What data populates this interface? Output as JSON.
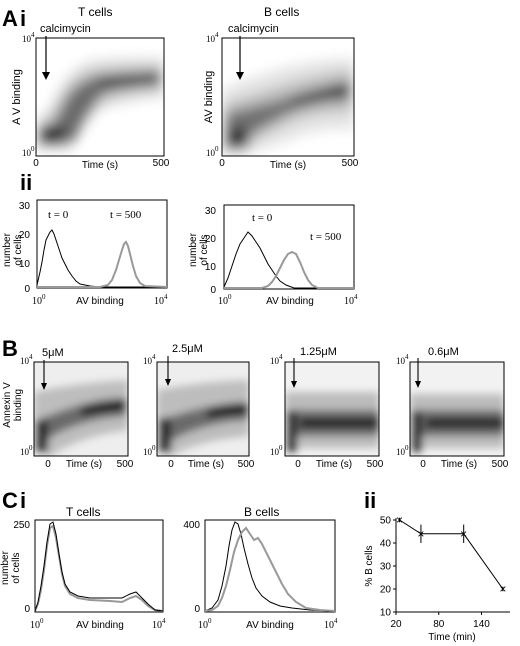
{
  "panel_A": {
    "label": "A",
    "sub_i": "i",
    "sub_ii": "ii",
    "density": [
      {
        "title": "T cells",
        "annot": "calcimycin",
        "ylabel": "A V binding",
        "xlabel": "Time (s)",
        "xtick0": "0",
        "xtick1": "500",
        "ytick_top": "10",
        "ytick_top_exp": "4",
        "ytick_bot": "10",
        "ytick_bot_exp": "0"
      },
      {
        "title": "B cells",
        "annot": "calcimycin",
        "ylabel": "AV binding",
        "xlabel": "Time (s)",
        "xtick0": "0",
        "xtick1": "500",
        "ytick_top": "10",
        "ytick_top_exp": "4",
        "ytick_bot": "10",
        "ytick_bot_exp": "0"
      }
    ],
    "hist": [
      {
        "ylabel1": "number",
        "ylabel2": "of cells",
        "xlabel": "AV binding",
        "t0": "t = 0",
        "t500": "t = 500",
        "y30": "30",
        "y20": "20",
        "y10": "10",
        "y0": "0",
        "x0": "10",
        "x0_exp": "0",
        "x1": "10",
        "x1_exp": "4"
      },
      {
        "ylabel1": "number",
        "ylabel2": "of cells",
        "xlabel": "AV binding",
        "t0": "t = 0",
        "t500": "t = 500",
        "y30": "30",
        "y20": "20",
        "y10": "10",
        "y0": "0",
        "x0": "10",
        "x0_exp": "0",
        "x1": "10",
        "x1_exp": "4"
      }
    ]
  },
  "panel_B": {
    "label": "B",
    "ylabel1": "Annexin V",
    "ylabel2": "binding",
    "xlabel": "Time (s)",
    "xtick0": "0",
    "xtick1": "500",
    "ytick_top": "10",
    "ytick_top_exp": "4",
    "ytick_bot": "10",
    "ytick_bot_exp": "0",
    "concentrations": [
      "5μM",
      "2.5μM",
      "1.25μM",
      "0.6μM"
    ]
  },
  "panel_C": {
    "label": "C",
    "sub_i": "i",
    "sub_ii": "ii",
    "hist": [
      {
        "title": "T cells",
        "ylabel1": "number",
        "ylabel2": "of cells",
        "xlabel": "AV binding",
        "ytop": "250",
        "ymid": "0",
        "x0": "10",
        "x0_exp": "0",
        "x1": "10",
        "x1_exp": "4"
      },
      {
        "title": "B cells",
        "ylabel1": "",
        "ylabel2": "",
        "xlabel": "AV binding",
        "ytop": "400",
        "ymid": "0",
        "x0": "10",
        "x0_exp": "0",
        "x1": "10",
        "x1_exp": "4"
      }
    ],
    "line": {
      "ylabel": "% B cells",
      "xlabel": "Time (min)",
      "yticks": [
        "50",
        "40",
        "30",
        "20",
        "10"
      ],
      "xticks": [
        "20",
        "80",
        "140"
      ]
    }
  },
  "chart_data": [
    {
      "type": "heatmap",
      "title": "T cells",
      "xlabel": "Time (s)",
      "ylabel": "A V binding",
      "xlim": [
        0,
        500
      ],
      "yscale": "log",
      "ylim": [
        1,
        10000
      ],
      "annotation": "calcimycin"
    },
    {
      "type": "heatmap",
      "title": "B cells",
      "xlabel": "Time (s)",
      "ylabel": "AV binding",
      "xlim": [
        0,
        500
      ],
      "yscale": "log",
      "ylim": [
        1,
        10000
      ],
      "annotation": "calcimycin"
    },
    {
      "type": "line",
      "xlabel": "AV binding",
      "ylabel": "number of cells",
      "xscale": "log",
      "xlim": [
        1,
        10000
      ],
      "ylim": [
        0,
        30
      ],
      "series": [
        {
          "name": "t = 0",
          "color": "#000000"
        },
        {
          "name": "t = 500",
          "color": "#999999"
        }
      ]
    },
    {
      "type": "line",
      "xlabel": "AV binding",
      "ylabel": "number of cells",
      "xscale": "log",
      "xlim": [
        1,
        10000
      ],
      "ylim": [
        0,
        30
      ],
      "series": [
        {
          "name": "t = 0",
          "color": "#000000"
        },
        {
          "name": "t = 500",
          "color": "#999999"
        }
      ]
    },
    {
      "type": "heatmap",
      "xlabel": "Time (s)",
      "ylabel": "Annexin V binding",
      "xlim": [
        0,
        500
      ],
      "yscale": "log",
      "ylim": [
        1,
        10000
      ],
      "annotations": [
        "5μM",
        "2.5μM",
        "1.25μM",
        "0.6μM"
      ]
    },
    {
      "type": "line",
      "title": "T cells",
      "xlabel": "AV binding",
      "ylabel": "number of cells",
      "xscale": "log",
      "xlim": [
        1,
        10000
      ],
      "ylim": [
        0,
        250
      ]
    },
    {
      "type": "line",
      "title": "B cells",
      "xlabel": "AV binding",
      "xscale": "log",
      "xlim": [
        1,
        10000
      ],
      "ylim": [
        0,
        400
      ]
    },
    {
      "type": "line",
      "xlabel": "Time (min)",
      "ylabel": "% B cells",
      "xlim": [
        20,
        180
      ],
      "ylim": [
        10,
        50
      ],
      "x": [
        25,
        55,
        115,
        170
      ],
      "values": [
        50,
        44,
        44,
        20
      ],
      "error": [
        1,
        4,
        4,
        1
      ]
    }
  ],
  "colors": {
    "density_dark": "#111111",
    "hist_black": "#000000",
    "hist_gray": "#999999"
  }
}
